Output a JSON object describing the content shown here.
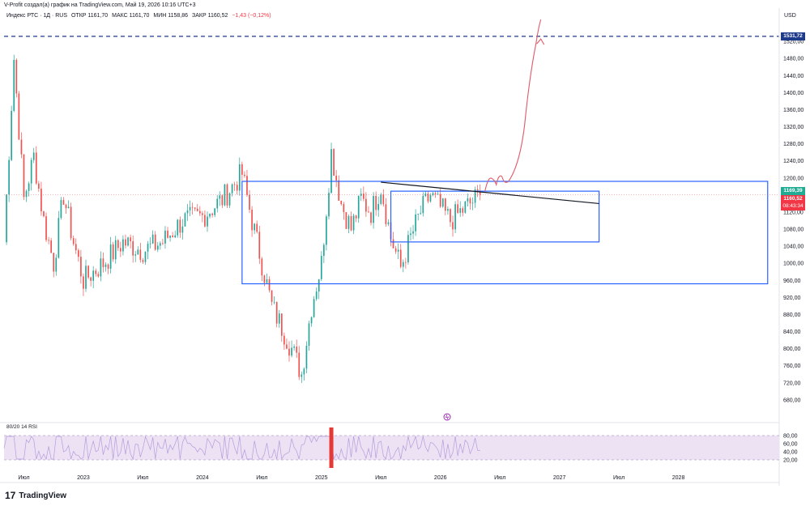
{
  "header": {
    "author_line": "V-Profit создал(а) график на TradingView.com, Май 19, 2026 10:16 UTC+3",
    "symbol": "Индекс РТС · 1Д · RUS",
    "open": "ОТКР 1161,70",
    "high": "МАКС 1161,70",
    "low": "МИН 1158,86",
    "close": "ЗАКР 1160,52",
    "change": "−1,43 (−0,12%)",
    "currency": "USD"
  },
  "price_tags": {
    "dashed_level": "1531,72",
    "level_1169": "1169,39",
    "last_price": "1160,52",
    "countdown": "08:43:34"
  },
  "rsi": {
    "label": "80/20 14 RSI",
    "ticks": [
      "80,00",
      "60,00",
      "40,00",
      "20,00"
    ]
  },
  "branding": {
    "logo_icon": "17",
    "name": "TradingView"
  },
  "colors": {
    "up": "#26a69a",
    "down": "#ef5350",
    "box": "#2962ff",
    "rsi_band": "#ede2f4",
    "drawing_arrow": "#e05a6a"
  },
  "chart_data": {
    "type": "candlestick",
    "title": "Индекс РТС · 1Д · RUS",
    "ylim": [
      640,
      1560
    ],
    "y_ticks": [
      680,
      720,
      760,
      800,
      840,
      880,
      920,
      960,
      1000,
      1040,
      1080,
      1120,
      1160,
      1200,
      1240,
      1280,
      1320,
      1360,
      1400,
      1440,
      1480,
      1520
    ],
    "y_tick_labels": [
      "680,00",
      "720,00",
      "760,00",
      "800,00",
      "840,00",
      "880,00",
      "920,00",
      "960,00",
      "1000,00",
      "1040,00",
      "1080,00",
      "1120,00",
      "1160,00",
      "1200,00",
      "1240,00",
      "1280,00",
      "1320,00",
      "1360,00",
      "1400,00",
      "1440,00",
      "1480,00",
      "1520,00"
    ],
    "x_ticks": [
      "Июл",
      "2023",
      "Июл",
      "2024",
      "Июл",
      "2025",
      "Июл",
      "2026",
      "Июл",
      "2027",
      "Июл",
      "2028"
    ],
    "price_path": [
      {
        "t": "2022-05",
        "v": 1050
      },
      {
        "t": "2022-06",
        "v": 1480
      },
      {
        "t": "2022-07",
        "v": 1150
      },
      {
        "t": "2022-08",
        "v": 1250
      },
      {
        "t": "2022-09",
        "v": 1100
      },
      {
        "t": "2022-10",
        "v": 1000
      },
      {
        "t": "2022-11",
        "v": 1160
      },
      {
        "t": "2022-12",
        "v": 1050
      },
      {
        "t": "2023-01",
        "v": 960
      },
      {
        "t": "2023-03",
        "v": 1000
      },
      {
        "t": "2023-05",
        "v": 1050
      },
      {
        "t": "2023-07",
        "v": 1030
      },
      {
        "t": "2023-09",
        "v": 1050
      },
      {
        "t": "2023-11",
        "v": 1100
      },
      {
        "t": "2024-01",
        "v": 1110
      },
      {
        "t": "2024-03",
        "v": 1150
      },
      {
        "t": "2024-05",
        "v": 1210
      },
      {
        "t": "2024-06",
        "v": 1100
      },
      {
        "t": "2024-07",
        "v": 1000
      },
      {
        "t": "2024-08",
        "v": 900
      },
      {
        "t": "2024-09",
        "v": 850
      },
      {
        "t": "2024-10",
        "v": 800
      },
      {
        "t": "2024-11",
        "v": 740
      },
      {
        "t": "2024-12",
        "v": 900
      },
      {
        "t": "2025-01",
        "v": 1000
      },
      {
        "t": "2025-02",
        "v": 1260
      },
      {
        "t": "2025-03",
        "v": 1140
      },
      {
        "t": "2025-04",
        "v": 1080
      },
      {
        "t": "2025-05",
        "v": 1150
      },
      {
        "t": "2025-06",
        "v": 1120
      },
      {
        "t": "2025-07",
        "v": 1180
      },
      {
        "t": "2025-08",
        "v": 1060
      },
      {
        "t": "2025-09",
        "v": 990
      },
      {
        "t": "2025-10",
        "v": 1060
      },
      {
        "t": "2025-11",
        "v": 1120
      },
      {
        "t": "2025-12",
        "v": 1160
      },
      {
        "t": "2026-02",
        "v": 1100
      },
      {
        "t": "2026-04",
        "v": 1140
      },
      {
        "t": "2026-05",
        "v": 1160.52
      }
    ],
    "levels": {
      "dashed": 1531.72,
      "resistance": 1169.39,
      "last": 1160.52
    },
    "boxes": [
      {
        "t_start": "2024-05",
        "t_end": "2028-10",
        "v_top": 1192,
        "v_bottom": 952
      },
      {
        "t_start": "2025-08",
        "t_end": "2027-05",
        "v_top": 1169,
        "v_bottom": 1050
      }
    ],
    "trendline": [
      {
        "t": "2025-07",
        "v": 1190
      },
      {
        "t": "2027-05",
        "v": 1140
      }
    ],
    "rsi": {
      "ylim": [
        0,
        100
      ],
      "upper": 80,
      "lower": 20,
      "highlight_t": "2025-02"
    }
  }
}
